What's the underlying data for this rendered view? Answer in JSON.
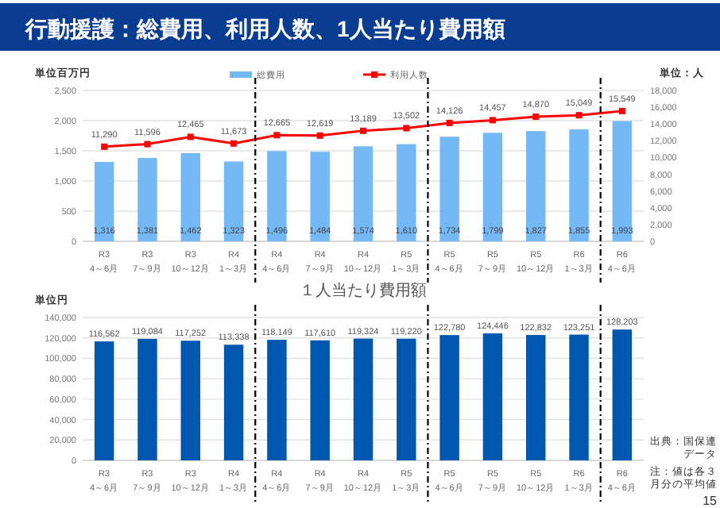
{
  "chart_data": [
    {
      "type": "bar",
      "title": "行動援護：総費用、利用人数、1人当たり費用額",
      "ylabel": "単位百万円",
      "y2label": "単位：人",
      "categories": [
        "R3\n4～6月",
        "R3\n7～9月",
        "R3\n10～12月",
        "R4\n1～3月",
        "R4\n4～6月",
        "R4\n7～9月",
        "R4\n10～12月",
        "R5\n1～3月",
        "R5\n4～6月",
        "R5\n7～9月",
        "R5\n10～12月",
        "R6\n1～3月",
        "R6\n4～6月"
      ],
      "series": [
        {
          "name": "総費用",
          "type": "bar",
          "color": "#74b9f5",
          "values": [
            1316,
            1381,
            1462,
            1323,
            1496,
            1484,
            1574,
            1610,
            1734,
            1799,
            1827,
            1855,
            1993
          ],
          "value_labels": [
            "1,316",
            "1,381",
            "1,462",
            "1,323",
            "1,496",
            "1,484",
            "1,574",
            "1,610",
            "1,734",
            "1,799",
            "1,827",
            "1,855",
            "1,993"
          ]
        },
        {
          "name": "利用人数",
          "type": "line",
          "axis": "y2",
          "color": "#ff0000",
          "values": [
            11290,
            11596,
            12465,
            11673,
            12665,
            12619,
            13189,
            13502,
            14126,
            14457,
            14870,
            15049,
            15549
          ],
          "value_labels": [
            "11,290",
            "11,596",
            "12,465",
            "11,673",
            "12,665",
            "12,619",
            "13,189",
            "13,502",
            "14,126",
            "14,457",
            "14,870",
            "15,049",
            "15,549"
          ]
        }
      ],
      "ylim": [
        0,
        2500
      ],
      "yticks": [
        {
          "value": 0,
          "label": "0"
        },
        {
          "value": 500,
          "label": "500"
        },
        {
          "value": 1000,
          "label": "1,000"
        },
        {
          "value": 1500,
          "label": "1,500"
        },
        {
          "value": 2000,
          "label": "2,000"
        },
        {
          "value": 2500,
          "label": "2,500"
        }
      ],
      "y2lim": [
        0,
        18000
      ],
      "y2ticks": [
        {
          "value": 0,
          "label": "0"
        },
        {
          "value": 2000,
          "label": "2,000"
        },
        {
          "value": 4000,
          "label": "4,000"
        },
        {
          "value": 6000,
          "label": "6,000"
        },
        {
          "value": 8000,
          "label": "8,000"
        },
        {
          "value": 10000,
          "label": "10,000"
        },
        {
          "value": 12000,
          "label": "12,000"
        },
        {
          "value": 14000,
          "label": "14,000"
        },
        {
          "value": 16000,
          "label": "16,000"
        },
        {
          "value": 18000,
          "label": "18,000"
        }
      ],
      "grid": "y",
      "legend": "top",
      "marker": "square"
    },
    {
      "type": "bar",
      "title": "１人当たり費用額",
      "ylabel": "単位円",
      "categories": [
        "R3\n4～6月",
        "R3\n7～9月",
        "R3\n10～12月",
        "R4\n1～3月",
        "R4\n4～6月",
        "R4\n7～9月",
        "R4\n10～12月",
        "R5\n1～3月",
        "R5\n4～6月",
        "R5\n7～9月",
        "R5\n10～12月",
        "R6\n1～3月",
        "R6\n4～6月"
      ],
      "values": [
        116562,
        119084,
        117252,
        113338,
        118149,
        117610,
        119324,
        119220,
        122780,
        124446,
        122832,
        123251,
        128203
      ],
      "color": "#0057b0",
      "value_labels": [
        "116,562",
        "119,084",
        "117,252",
        "113,338",
        "118,149",
        "117,610",
        "119,324",
        "119,220",
        "122,780",
        "124,446",
        "122,832",
        "123,251",
        "128,203"
      ],
      "ylim": [
        0,
        140000
      ],
      "yticks": [
        0,
        {
          "value": 20000,
          "label": "20,000"
        },
        {
          "value": 40000,
          "label": "40,000"
        },
        {
          "value": 60000,
          "label": "60,000"
        },
        {
          "value": 80000,
          "label": "80,000"
        },
        {
          "value": 100000,
          "label": "100,000"
        },
        {
          "value": 120000,
          "label": "120,000"
        },
        {
          "value": 140000,
          "label": "140,000"
        }
      ],
      "grid": "y",
      "annotations": [
        "出典：国保連データ",
        "注：値は各３月分の平均値",
        "15"
      ]
    }
  ]
}
